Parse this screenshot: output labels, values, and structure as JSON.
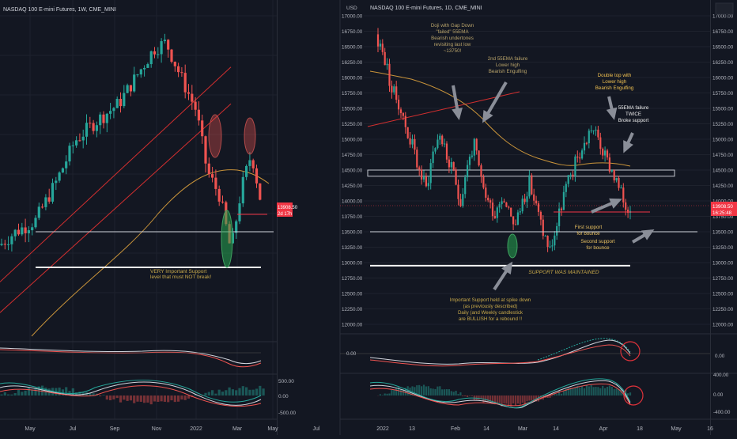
{
  "left_chart": {
    "title": "NASDAQ 100 E-mini Futures, 1W, CME_MINI",
    "x_labels": [
      "May",
      "Jul",
      "Sep",
      "Nov",
      "2022",
      "Mar",
      "May",
      "Jul"
    ],
    "annotation": "VERY Important Support\nlevel that must NOT break!",
    "rsi_label": "0.00"
  },
  "right_chart": {
    "title": "NASDAQ 100 E-mini Futures, 1D, CME_MINI",
    "currency": "USD",
    "y_ticks": [
      17000,
      16750,
      16500,
      16250,
      16000,
      15750,
      15500,
      15250,
      15000,
      14750,
      14500,
      14250,
      14000,
      13750,
      13500,
      13250,
      13000,
      12750,
      12500,
      12250,
      12000
    ],
    "x_labels": [
      "2022",
      "13",
      "Feb",
      "14",
      "Mar",
      "14",
      "Apr",
      "18",
      "May",
      "16"
    ],
    "last_price": "13908.50",
    "timer": "16:25:48",
    "annotations": {
      "doji": "Doji with Gap Down\n\"failed\" 55EMA\nBearish undertones\nrevisiting last low\n~13750!",
      "ema_failure_2nd": "2nd 55EMA failure\nLower high\nBearish Engulfing",
      "double_top": "Double top with\nLower high\nBearish Engulfing",
      "ema_twice": "55EMA failure\nTWICE\nBroke support",
      "first_support": "First support\nfor bounce",
      "second_support": "Second support\nfor bounce",
      "maintained": "SUPPORT WAS MAINTAINED",
      "important": "Important Support held at spike down\n(as previously described)\nDaily (and Weekly candlestick\nare BULLISH for a rebound !!"
    },
    "macd_ticks": [
      "0.00"
    ],
    "hist_ticks": [
      "400.00",
      "0.00",
      "-400.00"
    ]
  },
  "left_axis": {
    "price": "13908.50",
    "timer": "2d 17h",
    "hist_ticks": [
      "500.00",
      "0.00",
      "-500.00"
    ]
  },
  "chart_data": {
    "type": "candlestick",
    "title": "NASDAQ 100 E-mini Futures, 1D, CME_MINI",
    "ylim": [
      11800,
      17150
    ],
    "key_levels": {
      "important_support": 12950,
      "first_support": 13500,
      "resistance_zone": [
        14400,
        14500
      ]
    },
    "daily_closes_approx": [
      16600,
      16300,
      15800,
      15600,
      15200,
      14900,
      14500,
      14200,
      14800,
      15100,
      14700,
      14400,
      14000,
      14600,
      14900,
      14300,
      14000,
      13800,
      14100,
      13900,
      13600,
      14000,
      14300,
      13900,
      13500,
      13200,
      13600,
      14100,
      14400,
      14700,
      14900,
      15200,
      15000,
      14700,
      14500,
      14200,
      13908.5
    ],
    "colors": {
      "up": "#26a69a",
      "down": "#ef5350",
      "ema": "#c8933a"
    }
  }
}
